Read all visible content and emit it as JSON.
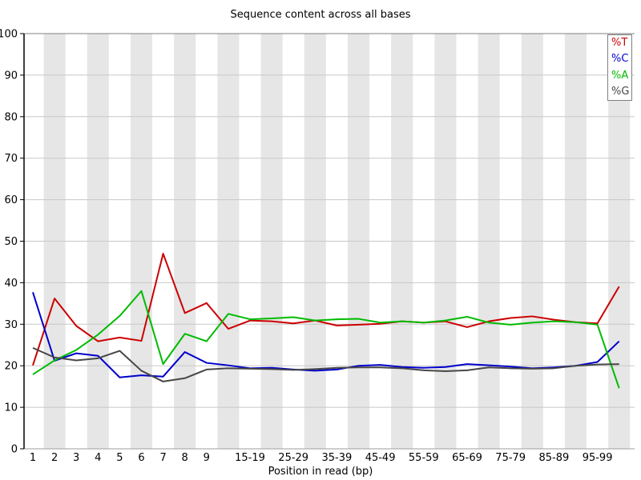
{
  "page": {
    "title": "Sequence content across all bases"
  },
  "chart_data": {
    "type": "line",
    "title": "Sequence content across all bases",
    "xlabel": "Position in read (bp)",
    "ylabel": "",
    "ylim": [
      0,
      100
    ],
    "y_ticks": [
      0,
      10,
      20,
      30,
      40,
      50,
      60,
      70,
      80,
      90,
      100
    ],
    "grid": true,
    "band_color": "#e6e6e6",
    "gridline_color": "#c8c8c8",
    "legend_position": "top-right",
    "categories": [
      "1",
      "2",
      "3",
      "4",
      "5",
      "6",
      "7",
      "8",
      "9",
      "",
      "15-19",
      "",
      "25-29",
      "",
      "35-39",
      "",
      "45-49",
      "",
      "55-59",
      "",
      "65-69",
      "",
      "75-79",
      "",
      "85-89",
      "",
      "95-99",
      ""
    ],
    "series": [
      {
        "name": "%T",
        "color": "#cc0000",
        "values": [
          20.1,
          36.2,
          29.6,
          25.9,
          26.8,
          26.0,
          47.0,
          32.7,
          35.1,
          28.9,
          30.9,
          30.7,
          30.2,
          30.9,
          29.7,
          29.9,
          30.1,
          30.7,
          30.4,
          30.7,
          29.3,
          30.7,
          31.5,
          31.9,
          31.1,
          30.5,
          30.2,
          39.1
        ]
      },
      {
        "name": "%C",
        "color": "#0000cc",
        "values": [
          37.7,
          21.2,
          23.0,
          22.4,
          17.2,
          17.7,
          17.4,
          23.3,
          20.7,
          20.1,
          19.4,
          19.5,
          19.1,
          18.8,
          19.1,
          20.0,
          20.2,
          19.7,
          19.5,
          19.7,
          20.4,
          20.1,
          19.8,
          19.4,
          19.6,
          20.0,
          20.9,
          25.9
        ]
      },
      {
        "name": "%A",
        "color": "#00bb00",
        "values": [
          17.9,
          21.3,
          23.8,
          27.5,
          32.0,
          38.0,
          20.4,
          27.7,
          25.9,
          32.5,
          31.2,
          31.4,
          31.7,
          30.9,
          31.2,
          31.3,
          30.4,
          30.7,
          30.4,
          30.9,
          31.8,
          30.4,
          29.9,
          30.4,
          30.7,
          30.5,
          29.9,
          14.6
        ]
      },
      {
        "name": "%G",
        "color": "#474747",
        "values": [
          24.3,
          22.0,
          21.3,
          21.8,
          23.6,
          18.8,
          16.2,
          17.0,
          19.1,
          19.4,
          19.3,
          19.2,
          19.0,
          19.2,
          19.5,
          19.6,
          19.6,
          19.4,
          18.9,
          18.7,
          18.9,
          19.6,
          19.4,
          19.3,
          19.4,
          20.0,
          20.3,
          20.4
        ]
      }
    ],
    "legend": {
      "items": [
        "%T",
        "%C",
        "%A",
        "%G"
      ]
    }
  }
}
